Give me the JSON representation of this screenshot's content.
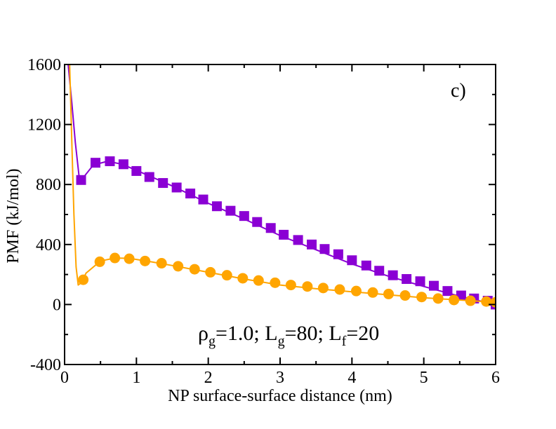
{
  "chart_data": {
    "type": "line",
    "panel_label": "c)",
    "xlabel": "NP surface-surface distance (nm)",
    "ylabel": "PMF (kJ/mol)",
    "xlim": [
      0,
      6
    ],
    "ylim": [
      -400,
      1600
    ],
    "xticks": [
      0,
      1,
      2,
      3,
      4,
      5,
      6
    ],
    "yticks": [
      -400,
      0,
      400,
      800,
      1200,
      1600
    ],
    "annotation": {
      "rho": "ρ",
      "rho_sub": "g",
      "rho_val": "=1.0; ",
      "L1": "L",
      "L1_sub": "g",
      "L1_val": "=80; ",
      "L2": "L",
      "L2_sub": "f",
      "L2_val": "=20"
    },
    "series": [
      {
        "name": "violet squares",
        "color": "#8a00d4",
        "marker": "square",
        "curve": [
          [
            0.05,
            1600
          ],
          [
            0.1,
            1350
          ],
          [
            0.15,
            1080
          ],
          [
            0.2,
            860
          ],
          [
            0.23,
            825
          ],
          [
            0.3,
            870
          ],
          [
            0.4,
            930
          ],
          [
            0.6,
            955
          ],
          [
            0.8,
            935
          ],
          [
            1.0,
            895
          ],
          [
            1.5,
            790
          ],
          [
            2.0,
            675
          ],
          [
            2.5,
            570
          ],
          [
            3.0,
            460
          ],
          [
            3.5,
            365
          ],
          [
            4.0,
            270
          ],
          [
            4.5,
            190
          ],
          [
            5.0,
            120
          ],
          [
            5.5,
            55
          ],
          [
            6.0,
            0
          ]
        ],
        "x": [
          0.23,
          0.43,
          0.63,
          0.82,
          1.0,
          1.18,
          1.37,
          1.56,
          1.75,
          1.93,
          2.12,
          2.31,
          2.5,
          2.68,
          2.87,
          3.05,
          3.25,
          3.44,
          3.62,
          3.81,
          4.0,
          4.2,
          4.38,
          4.57,
          4.76,
          4.95,
          5.14,
          5.33,
          5.52,
          5.7,
          5.89,
          6.0
        ],
        "y": [
          830,
          945,
          955,
          935,
          890,
          850,
          810,
          780,
          740,
          700,
          655,
          625,
          590,
          550,
          510,
          465,
          430,
          400,
          370,
          335,
          295,
          260,
          225,
          195,
          170,
          155,
          125,
          90,
          60,
          40,
          25,
          0
        ]
      },
      {
        "name": "orange circles",
        "color": "#ffa500",
        "marker": "circle",
        "curve": [
          [
            0.07,
            1600
          ],
          [
            0.1,
            1100
          ],
          [
            0.13,
            600
          ],
          [
            0.16,
            250
          ],
          [
            0.19,
            130
          ],
          [
            0.23,
            145
          ],
          [
            0.3,
            210
          ],
          [
            0.5,
            290
          ],
          [
            0.7,
            310
          ],
          [
            0.9,
            308
          ],
          [
            1.2,
            285
          ],
          [
            1.5,
            260
          ],
          [
            2.0,
            215
          ],
          [
            2.5,
            170
          ],
          [
            3.0,
            130
          ],
          [
            3.5,
            105
          ],
          [
            4.0,
            85
          ],
          [
            4.5,
            65
          ],
          [
            5.0,
            45
          ],
          [
            5.5,
            30
          ],
          [
            6.0,
            15
          ]
        ],
        "x": [
          0.26,
          0.49,
          0.7,
          0.9,
          1.12,
          1.35,
          1.58,
          1.81,
          2.03,
          2.26,
          2.48,
          2.7,
          2.93,
          3.15,
          3.38,
          3.6,
          3.83,
          4.06,
          4.29,
          4.51,
          4.74,
          4.97,
          5.2,
          5.42,
          5.65,
          5.87,
          6.0
        ],
        "y": [
          165,
          285,
          310,
          305,
          290,
          275,
          255,
          235,
          215,
          195,
          175,
          160,
          145,
          130,
          120,
          110,
          100,
          90,
          80,
          70,
          60,
          50,
          40,
          30,
          25,
          20,
          15
        ]
      }
    ]
  }
}
